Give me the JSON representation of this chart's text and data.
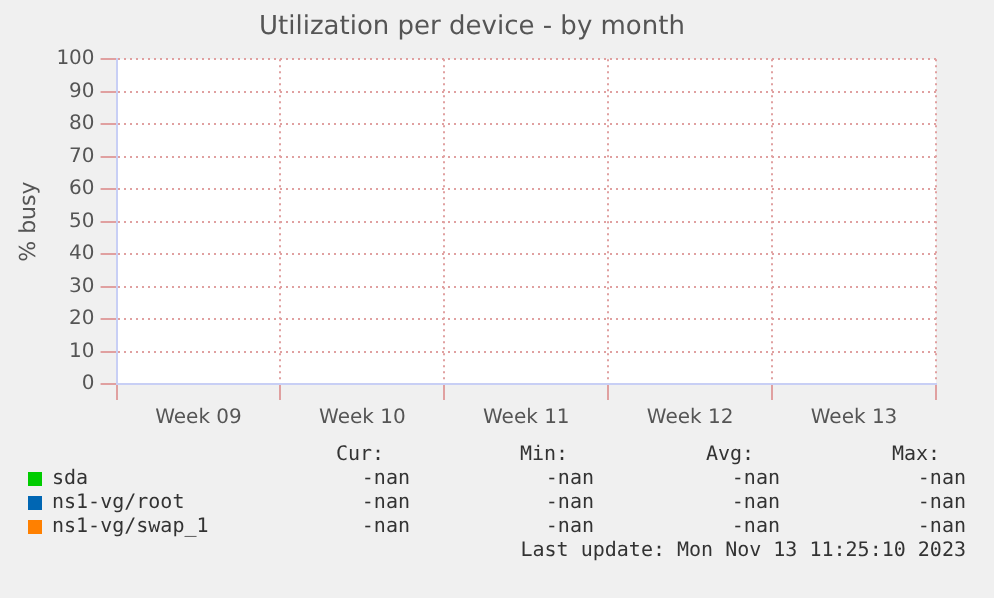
{
  "chart_data": {
    "type": "line",
    "title": "Utilization per device - by month",
    "ylabel": "% busy",
    "categories": [
      "Week 09",
      "Week 10",
      "Week 11",
      "Week 12",
      "Week 13"
    ],
    "series": [
      {
        "name": "sda",
        "color": "#00cc00",
        "values": [
          null,
          null,
          null,
          null,
          null
        ]
      },
      {
        "name": "ns1-vg/root",
        "color": "#0066b3",
        "values": [
          null,
          null,
          null,
          null,
          null
        ]
      },
      {
        "name": "ns1-vg/swap_1",
        "color": "#ff8000",
        "values": [
          null,
          null,
          null,
          null,
          null
        ]
      }
    ],
    "ylim": [
      0,
      100
    ],
    "yticks": [
      0,
      10,
      20,
      30,
      40,
      50,
      60,
      70,
      80,
      90,
      100
    ],
    "grid": true,
    "legend": "bottom",
    "annotations": [
      "Cur:",
      "Min:",
      "Avg:",
      "Max:",
      "-nan",
      "-nan",
      "-nan",
      "-nan",
      "-nan",
      "-nan",
      "-nan",
      "-nan",
      "-nan",
      "-nan",
      "-nan",
      "-nan",
      "Last update: Mon Nov 13 11:25:10 2023"
    ]
  }
}
